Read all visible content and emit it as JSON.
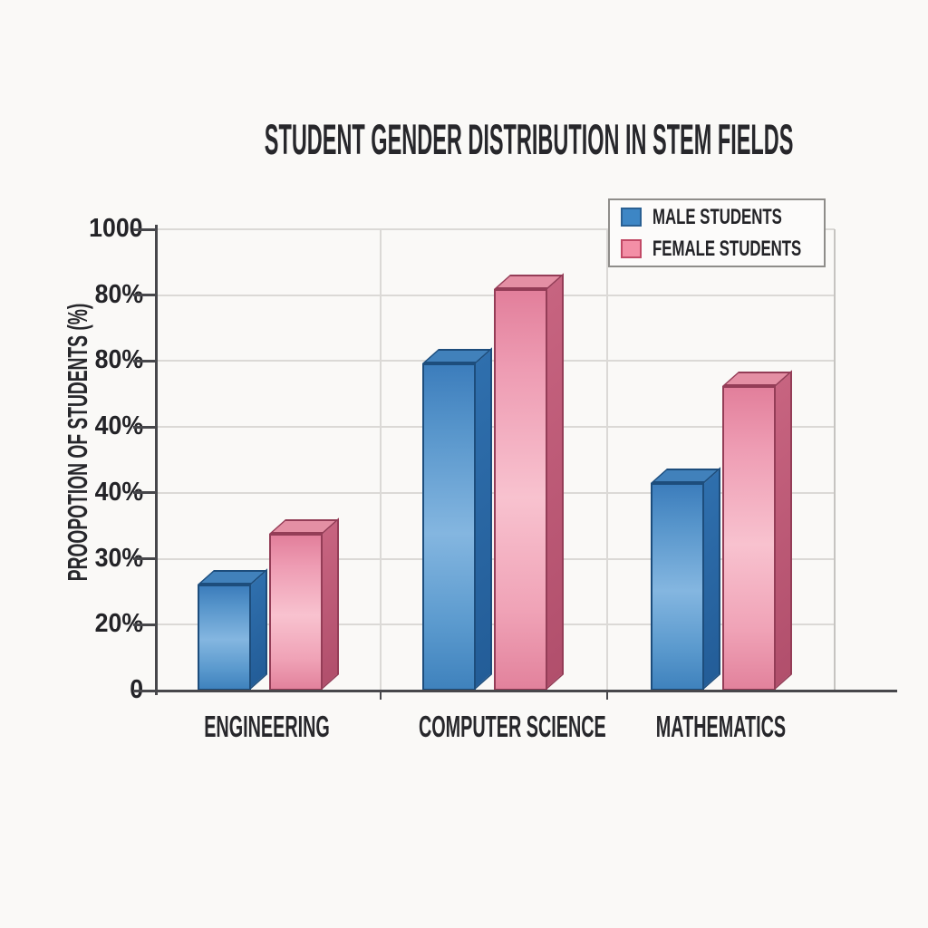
{
  "title": "STUDENT GENDER DISTRIBUTION IN STEM FIELDS",
  "chart_data": {
    "type": "bar",
    "style": "3d-bars",
    "title": "STUDENT GENDER DISTRIBUTION IN STEM FIELDS",
    "categories": [
      "ENGINEERING",
      "COMPUTER SCIENCE",
      "MATHEMATICS"
    ],
    "series": [
      {
        "name": "MALE STUDENTS",
        "values": [
          23,
          71,
          45
        ],
        "color": "#3d86c5",
        "palette": {
          "outline": "#1d4d7c",
          "front_gradient": [
            "#3c7dbc",
            "#5795cb",
            "#84b6e0",
            "#5b9ace",
            "#3f82bd"
          ],
          "top": "#4181bb",
          "side_gradient": [
            "#2f6fad",
            "#235d98"
          ]
        }
      },
      {
        "name": "FEMALE STUDENTS",
        "values": [
          34,
          87,
          66
        ],
        "color": "#f191a7",
        "palette": {
          "outline": "#943d57",
          "front_gradient": [
            "#e27f9b",
            "#ee9cb3",
            "#f8c2cf",
            "#f0a3b7",
            "#e2829c"
          ],
          "top": "#e48fa4",
          "side_gradient": [
            "#c76480",
            "#b14f6c"
          ]
        }
      }
    ],
    "xlabel": "",
    "ylabel": "PROOPOTION OF STUDENTS (%)",
    "ylim": [
      0,
      100
    ],
    "y_tick_labels": [
      "1000",
      "80%",
      "80%",
      "40%",
      "40%",
      "30%",
      "20%",
      "0"
    ],
    "grid": true,
    "legend_position": "top-right"
  },
  "legend": {
    "swatch_colors": {
      "male": "#3d86c5",
      "female": "#f38fa6"
    },
    "swatch_borders": {
      "male": "#2a6093",
      "female": "#c24a66"
    }
  },
  "colors": {
    "background": "#faf9f7",
    "gridline": "#dbd9d6",
    "axis": "#47474b",
    "text": "#27272b"
  }
}
